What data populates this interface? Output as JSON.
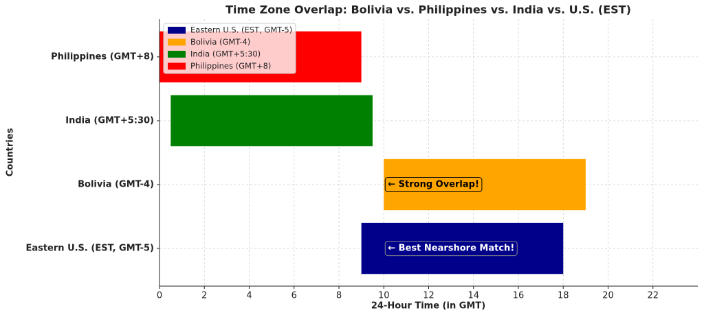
{
  "chart_data": {
    "type": "floating_bar",
    "title": "Time Zone Overlap: Bolivia vs. Philippines vs. India vs. U.S. (EST)",
    "xlabel": "24-Hour Time (in GMT)",
    "ylabel": "Countries",
    "categories": [
      "Eastern U.S. (EST, GMT-5)",
      "Bolivia (GMT-4)",
      "India (GMT+5:30)",
      "Philippines (GMT+8)"
    ],
    "starts": [
      9,
      10,
      0.5,
      0
    ],
    "ends": [
      18,
      19,
      9.5,
      9
    ],
    "colors": [
      "#00008b",
      "#ffa500",
      "#008000",
      "#ff0000"
    ],
    "xlim": [
      0,
      24
    ],
    "xticks": [
      0,
      2,
      4,
      6,
      8,
      10,
      12,
      14,
      16,
      18,
      20,
      22
    ],
    "grid": true,
    "legend": "upper left",
    "annotations": [
      {
        "text": "← Strong Overlap!",
        "x": 10,
        "category": "Bolivia (GMT-4)",
        "box_color": "#ffa500",
        "text_color": "#000000"
      },
      {
        "text": "← Best Nearshore Match!",
        "x": 10,
        "category": "Eastern U.S. (EST, GMT-5)",
        "box_color": "#00008b",
        "text_color": "#ffffff"
      }
    ]
  }
}
